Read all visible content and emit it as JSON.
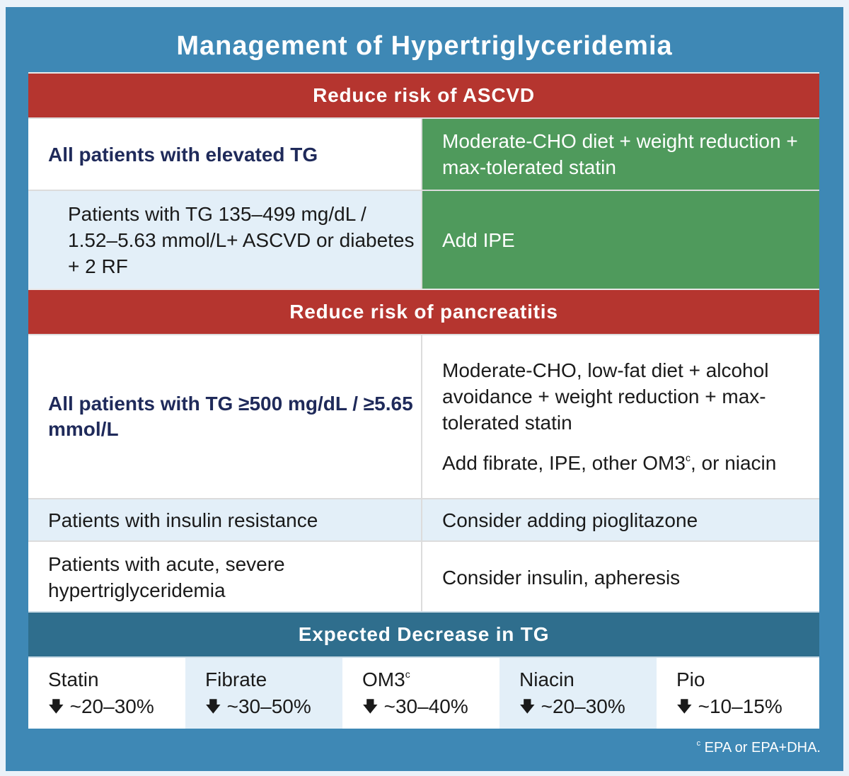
{
  "title": "Management of Hypertriglyceridemia",
  "sections": {
    "ascvd": {
      "header": "Reduce risk of ASCVD",
      "row1": {
        "left": "All patients with elevated TG",
        "right": "Moderate-CHO diet + weight reduction + max-tolerated statin"
      },
      "row2": {
        "left": "Patients with TG 135–499 mg/dL / 1.52–5.63 mmol/L+ ASCVD or diabetes + 2 RF",
        "right": "Add IPE"
      }
    },
    "pancreatitis": {
      "header": "Reduce risk of pancreatitis",
      "row1": {
        "left": "All patients with TG ≥500 mg/dL / ≥5.65 mmol/L",
        "right_para1": "Moderate-CHO, low-fat diet + alcohol avoidance + weight reduction + max-tolerated statin",
        "right_para2_before": "Add fibrate, IPE, other OM3",
        "right_para2_sup": "c",
        "right_para2_after": ", or niacin"
      },
      "row2": {
        "left": "Patients with insulin resistance",
        "right": "Consider adding pioglitazone"
      },
      "row3": {
        "left": "Patients with acute, severe hypertriglyceridemia",
        "right": "Consider insulin, apheresis"
      }
    },
    "expected": {
      "header": "Expected Decrease in TG",
      "arrow_glyph": "🡇",
      "items": [
        {
          "name": "Statin",
          "sup": "",
          "value": "~20–30%"
        },
        {
          "name": "Fibrate",
          "sup": "",
          "value": "~30–50%"
        },
        {
          "name": "OM3",
          "sup": "c",
          "value": "~30–40%"
        },
        {
          "name": "Niacin",
          "sup": "",
          "value": "~20–30%"
        },
        {
          "name": "Pio",
          "sup": "",
          "value": "~10–15%"
        }
      ]
    }
  },
  "footnote": {
    "marker": "c",
    "text": " EPA or EPA+DHA."
  },
  "colors": {
    "frame": "#3e88b5",
    "red_header": "#b5352f",
    "green_cell": "#4f9a5c",
    "teal_header": "#2f6e8d",
    "light_row": "#e3eff8",
    "navy_text": "#1f2a5a"
  }
}
